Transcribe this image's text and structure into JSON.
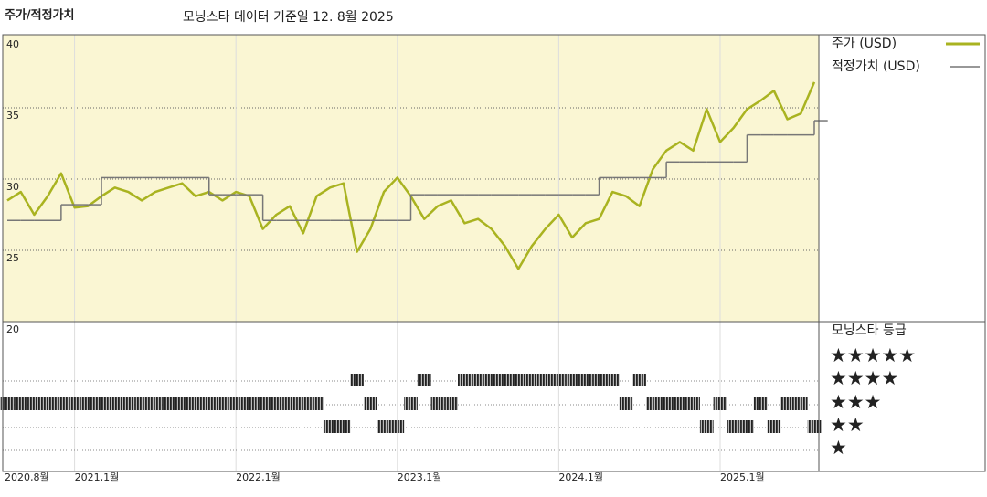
{
  "chart_data": {
    "type": "line",
    "title": "주가/적정가치",
    "subtitle": "모닝스타 데이터 기준일 12. 8월 2025",
    "categories": [
      "2020-08",
      "2020-09",
      "2020-10",
      "2020-11",
      "2020-12",
      "2021-01",
      "2021-02",
      "2021-03",
      "2021-04",
      "2021-05",
      "2021-06",
      "2021-07",
      "2021-08",
      "2021-09",
      "2021-10",
      "2021-11",
      "2021-12",
      "2022-01",
      "2022-02",
      "2022-03",
      "2022-04",
      "2022-05",
      "2022-06",
      "2022-07",
      "2022-08",
      "2022-09",
      "2022-10",
      "2022-11",
      "2022-12",
      "2023-01",
      "2023-02",
      "2023-03",
      "2023-04",
      "2023-05",
      "2023-06",
      "2023-07",
      "2023-08",
      "2023-09",
      "2023-10",
      "2023-11",
      "2023-12",
      "2024-01",
      "2024-02",
      "2024-03",
      "2024-04",
      "2024-05",
      "2024-06",
      "2024-07",
      "2024-08",
      "2024-09",
      "2024-10",
      "2024-11",
      "2024-12",
      "2025-01",
      "2025-02",
      "2025-03",
      "2025-04",
      "2025-05",
      "2025-06",
      "2025-07",
      "2025-08"
    ],
    "series": [
      {
        "name": "주가 (USD)",
        "color": "#a9b320",
        "values": [
          28.5,
          29.1,
          27.5,
          28.8,
          30.4,
          28.0,
          28.1,
          28.8,
          29.4,
          29.1,
          28.5,
          29.1,
          29.4,
          29.7,
          28.8,
          29.1,
          28.5,
          29.1,
          28.8,
          26.5,
          27.5,
          28.1,
          26.2,
          28.8,
          29.4,
          29.7,
          24.9,
          26.5,
          29.1,
          30.1,
          28.8,
          27.2,
          28.1,
          28.5,
          26.9,
          27.2,
          26.5,
          25.3,
          23.7,
          25.3,
          26.5,
          27.5,
          25.9,
          26.9,
          27.2,
          29.1,
          28.8,
          28.1,
          30.7,
          32.0,
          32.6,
          32.0,
          34.9,
          32.6,
          33.6,
          34.9,
          35.5,
          36.2,
          34.2,
          34.6,
          36.8
        ]
      },
      {
        "name": "적정가치 (USD)",
        "color": "#777777",
        "step": true,
        "values": [
          27.1,
          27.1,
          27.1,
          27.1,
          28.2,
          28.2,
          28.2,
          30.1,
          30.1,
          30.1,
          30.1,
          30.1,
          30.1,
          30.1,
          30.1,
          28.9,
          28.9,
          28.9,
          28.9,
          27.1,
          27.1,
          27.1,
          27.1,
          27.1,
          27.1,
          27.1,
          27.1,
          27.1,
          27.1,
          27.1,
          28.9,
          28.9,
          28.9,
          28.9,
          28.9,
          28.9,
          28.9,
          28.9,
          28.9,
          28.9,
          28.9,
          28.9,
          28.9,
          28.9,
          30.1,
          30.1,
          30.1,
          30.1,
          30.1,
          31.2,
          31.2,
          31.2,
          31.2,
          31.2,
          31.2,
          33.1,
          33.1,
          33.1,
          33.1,
          33.1,
          34.1
        ]
      }
    ],
    "ylim": [
      20,
      40
    ],
    "yticks": [
      40,
      35,
      30,
      25,
      20
    ],
    "grid_y": [
      35,
      30,
      25
    ],
    "xticks": [
      {
        "value": "2020-08",
        "label": "2020,8월"
      },
      {
        "value": "2021-01",
        "label": "2021,1월"
      },
      {
        "value": "2022-01",
        "label": "2022,1월"
      },
      {
        "value": "2023-01",
        "label": "2023,1월"
      },
      {
        "value": "2024-01",
        "label": "2024,1월"
      },
      {
        "value": "2025-01",
        "label": "2025,1월"
      }
    ],
    "background": "#faf6d3",
    "rating": {
      "title": "모닝스타 등급",
      "labels": [
        "★★★★★",
        "★★★★",
        "★★★",
        "★★",
        "★"
      ],
      "values": [
        3,
        3,
        3,
        3,
        3,
        3,
        3,
        3,
        3,
        3,
        3,
        3,
        3,
        3,
        3,
        3,
        3,
        3,
        3,
        3,
        3,
        3,
        3,
        3,
        2,
        2,
        4,
        3,
        2,
        2,
        3,
        4,
        3,
        3,
        4,
        4,
        4,
        4,
        4,
        4,
        4,
        4,
        4,
        4,
        4,
        4,
        3,
        4,
        3,
        3,
        3,
        3,
        2,
        3,
        2,
        2,
        3,
        2,
        3,
        3,
        2
      ]
    }
  }
}
